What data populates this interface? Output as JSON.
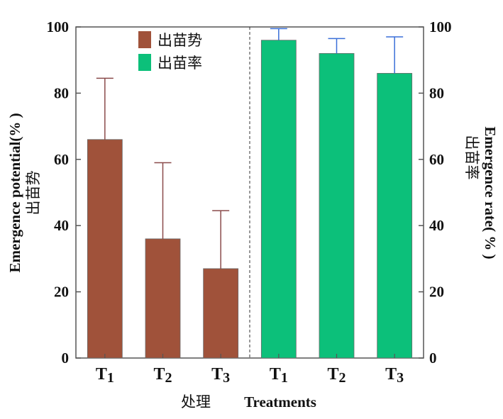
{
  "chart_data": {
    "type": "bar",
    "categories": [
      "T1",
      "T2",
      "T3"
    ],
    "xlabel_cn": "处理",
    "xlabel_en": "Treatments",
    "ylabel_left_en": "Emergence potential(% )",
    "ylabel_left_cn": "出苗势",
    "ylabel_right_en": "Emergence rate( % )",
    "ylabel_right_cn": "出苗率",
    "ylim": [
      0,
      100
    ],
    "yticks": [
      "0",
      "20",
      "40",
      "60",
      "80",
      "100"
    ],
    "grid": false,
    "legend_position": "top",
    "series": [
      {
        "name": "出苗势",
        "color": "#a0523a",
        "values": [
          66,
          36,
          27
        ],
        "errors": [
          18.5,
          23,
          17.5
        ],
        "error_color": "#8a4a4a"
      },
      {
        "name": "出苗率",
        "color": "#0cc07a",
        "values": [
          96,
          92,
          86
        ],
        "errors": [
          3.5,
          4.5,
          11
        ],
        "error_color": "#3a6fd8"
      }
    ]
  }
}
